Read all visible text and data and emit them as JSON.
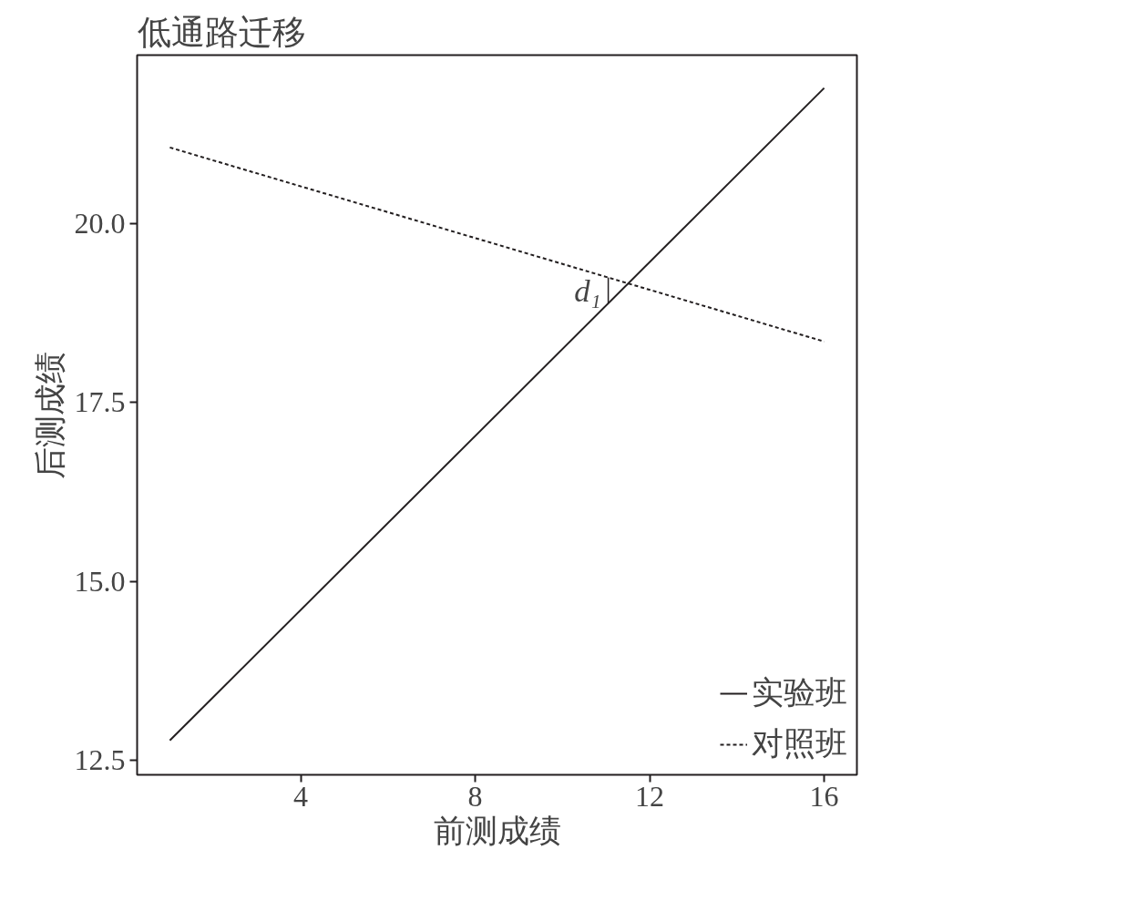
{
  "chart_data": {
    "type": "line",
    "title": "低通路迁移",
    "xlabel": "前测成绩",
    "ylabel": "后测成绩",
    "x": [
      1,
      16
    ],
    "series": [
      {
        "name": "实验班",
        "color": "#231f20",
        "values": [
          12.78,
          21.89
        ],
        "line_style": "solid"
      },
      {
        "name": "对照班",
        "color": "#231f20",
        "values": [
          21.06,
          18.35
        ],
        "line_style": "dotted"
      }
    ],
    "annotations": [
      {
        "text": "d₁",
        "x": 11.05,
        "y": 18.88
      }
    ],
    "xlim": [
      0.25,
      16.75
    ],
    "ylim": [
      12.3,
      22.35
    ],
    "xticks": [
      4,
      8,
      12,
      16
    ],
    "yticks": [
      {
        "value": 12.5,
        "label": "12.5"
      },
      {
        "value": 15,
        "label": "15.0"
      },
      {
        "value": 17.5,
        "label": "17.5"
      },
      {
        "value": 20,
        "label": "20.0"
      }
    ],
    "grid": false,
    "legend": "bottom right",
    "marker": "none"
  }
}
